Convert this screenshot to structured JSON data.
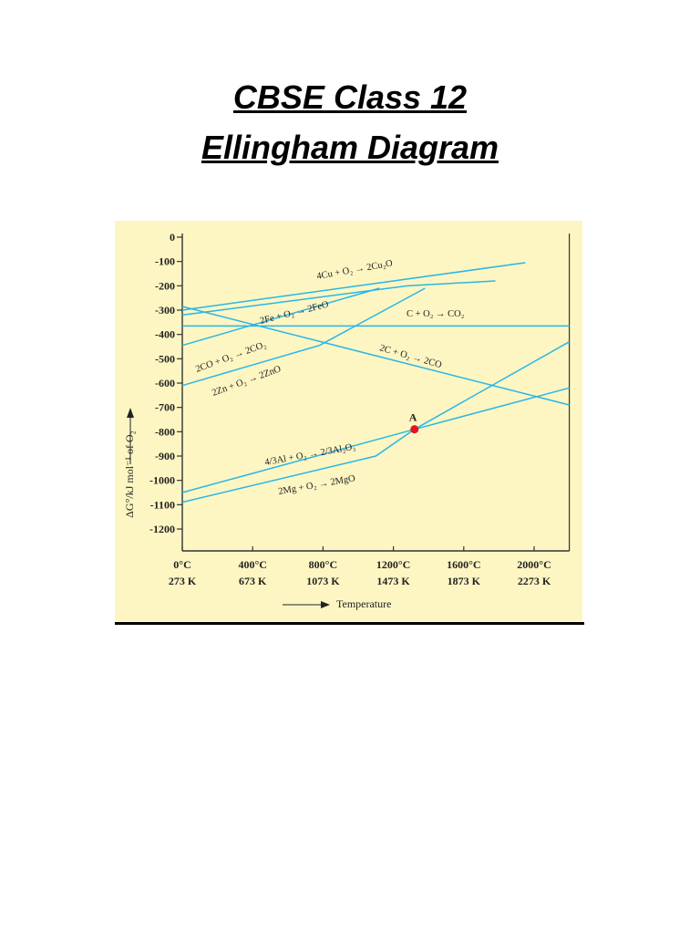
{
  "page": {
    "title_line1": "CBSE Class 12",
    "title_line2": "Ellingham Diagram"
  },
  "colors": {
    "line": "#29b6e6",
    "background": "#fdf6c3",
    "point": "#e8141b"
  },
  "chart_data": {
    "type": "line",
    "title": "",
    "xlabel": "Temperature",
    "ylabel": "ΔG°/kJ mol⁻¹ of O₂",
    "xlim": [
      0,
      2200
    ],
    "ylim": [
      -1200,
      0
    ],
    "grid": false,
    "x_ticks": [
      {
        "c": 0,
        "label": "0°C",
        "kelvin": "273 K"
      },
      {
        "c": 400,
        "label": "400°C",
        "kelvin": "673 K"
      },
      {
        "c": 800,
        "label": "800°C",
        "kelvin": "1073 K"
      },
      {
        "c": 1200,
        "label": "1200°C",
        "kelvin": "1473 K"
      },
      {
        "c": 1600,
        "label": "1600°C",
        "kelvin": "1873 K"
      },
      {
        "c": 2000,
        "label": "2000°C",
        "kelvin": "2273 K"
      }
    ],
    "y_ticks": [
      {
        "v": 0,
        "label": "0"
      },
      {
        "v": -100,
        "label": "-100"
      },
      {
        "v": -200,
        "label": "-200"
      },
      {
        "v": -300,
        "label": "-300"
      },
      {
        "v": -400,
        "label": "-400"
      },
      {
        "v": -500,
        "label": "-500"
      },
      {
        "v": -600,
        "label": "-600"
      },
      {
        "v": -700,
        "label": "-700"
      },
      {
        "v": -800,
        "label": "-800"
      },
      {
        "v": -900,
        "label": "-900"
      },
      {
        "v": -1000,
        "label": "-1000"
      },
      {
        "v": -1100,
        "label": "-1100"
      },
      {
        "v": -1200,
        "label": "-1200"
      }
    ],
    "series": [
      {
        "name": "4Cu + O₂ → 2Cu₂O",
        "x": [
          0,
          1950
        ],
        "y": [
          -300,
          -105
        ]
      },
      {
        "name": "2Fe + O₂ → 2FeO",
        "x": [
          0,
          1280,
          1780
        ],
        "y": [
          -320,
          -200,
          -180
        ]
      },
      {
        "name": "C + O₂ → CO₂",
        "x": [
          0,
          2200
        ],
        "y": [
          -365,
          -365
        ]
      },
      {
        "name": "2C + O₂ → 2CO",
        "x": [
          0,
          2200
        ],
        "y": [
          -285,
          -690
        ]
      },
      {
        "name": "2CO + O₂ → 2CO₂",
        "x": [
          0,
          1120
        ],
        "y": [
          -445,
          -210
        ]
      },
      {
        "name": "2Zn + O₂ → 2ZnO",
        "x": [
          0,
          780,
          1380
        ],
        "y": [
          -610,
          -445,
          -210
        ]
      },
      {
        "name": "4/3Al + O₂ → 2/3Al₂O₃",
        "x": [
          0,
          1320,
          2200
        ],
        "y": [
          -1050,
          -790,
          -620
        ]
      },
      {
        "name": "2Mg + O₂ → 2MgO",
        "x": [
          0,
          1100,
          1320,
          2200
        ],
        "y": [
          -1090,
          -900,
          -790,
          -430
        ]
      }
    ],
    "annotations": [
      {
        "text": "A",
        "x": 1320,
        "y": -790
      }
    ]
  }
}
